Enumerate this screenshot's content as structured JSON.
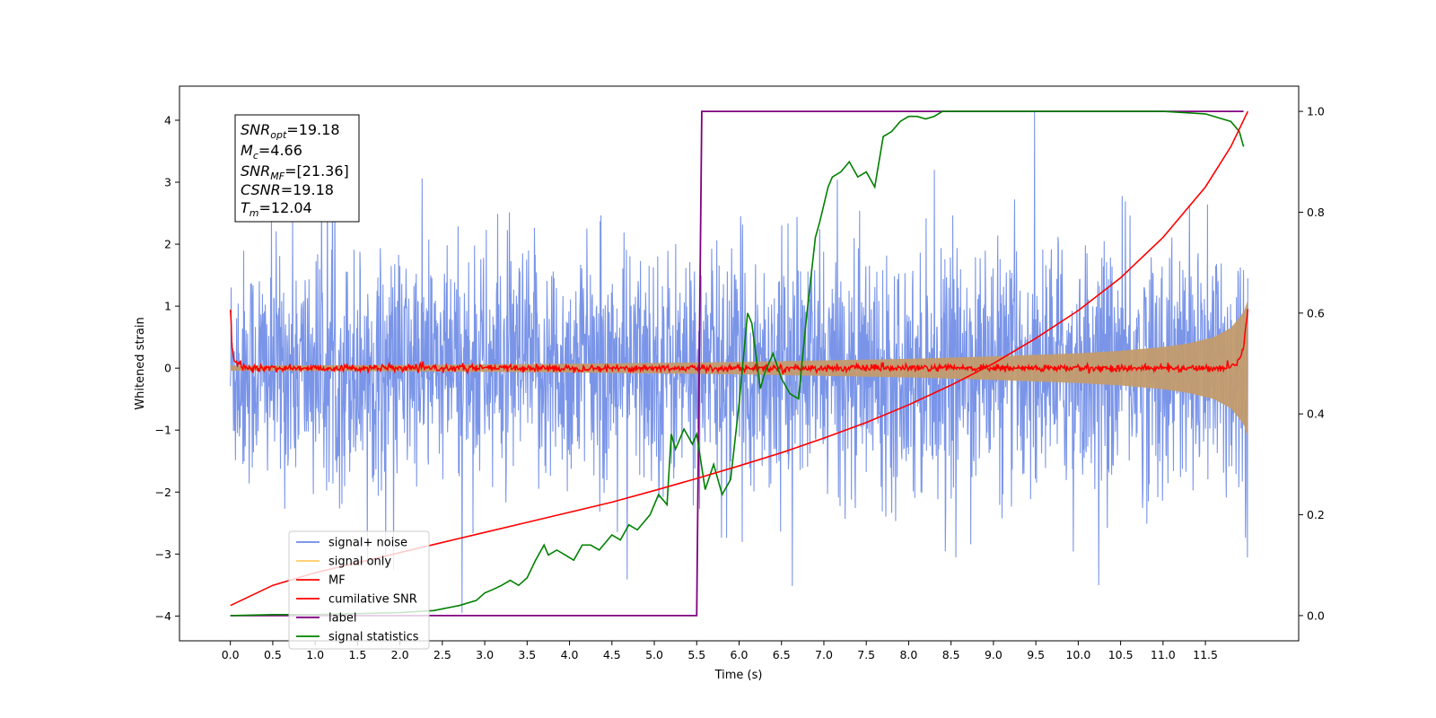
{
  "chart_data": {
    "type": "line",
    "xlabel": "Time (s)",
    "ylabel": "Whitened strain",
    "xlim": [
      -0.6,
      12.6
    ],
    "ylim": [
      -4.4,
      4.55
    ],
    "y2lim": [
      -0.05,
      1.05
    ],
    "xticks": [
      0.0,
      0.5,
      1.0,
      1.5,
      2.0,
      2.5,
      3.0,
      3.5,
      4.0,
      4.5,
      5.0,
      5.5,
      6.0,
      6.5,
      7.0,
      7.5,
      8.0,
      8.5,
      9.0,
      9.5,
      10.0,
      10.5,
      11.0,
      11.5
    ],
    "xtick_labels": [
      "0.0",
      "0.5",
      "1.0",
      "1.5",
      "2.0",
      "2.5",
      "3.0",
      "3.5",
      "4.0",
      "4.5",
      "5.0",
      "5.5",
      "6.0",
      "6.5",
      "7.0",
      "7.5",
      "8.0",
      "8.5",
      "9.0",
      "9.5",
      "10.0",
      "10.5",
      "11.0",
      "11.5"
    ],
    "yticks": [
      -4,
      -3,
      -2,
      -1,
      0,
      1,
      2,
      3,
      4
    ],
    "ytick_labels": [
      "−4",
      "−3",
      "−2",
      "−1",
      "0",
      "1",
      "2",
      "3",
      "4"
    ],
    "y2ticks": [
      0.0,
      0.2,
      0.4,
      0.6,
      0.8,
      1.0
    ],
    "y2tick_labels": [
      "0.0",
      "0.2",
      "0.4",
      "0.6",
      "0.8",
      "1.0"
    ],
    "legend_position": "lower-left",
    "series": [
      {
        "name": "signal+ noise",
        "color": "#6b8ae6",
        "axis": "left",
        "description_envelope": {
          "x": [
            0.0,
            2.0,
            4.0,
            6.0,
            8.0,
            10.0,
            11.0,
            11.5,
            11.8,
            12.0
          ],
          "upper": [
            1.7,
            1.7,
            1.7,
            1.7,
            1.7,
            1.75,
            1.8,
            1.9,
            2.0,
            2.1
          ],
          "lower": [
            -1.7,
            -1.7,
            -1.7,
            -1.7,
            -1.7,
            -1.75,
            -1.8,
            -1.9,
            -2.0,
            -2.1
          ]
        }
      },
      {
        "name": "signal only",
        "color": "#ffcc66",
        "axis": "left",
        "envelope": {
          "x": [
            0.0,
            2.0,
            4.0,
            6.0,
            8.0,
            9.0,
            10.0,
            10.5,
            11.0,
            11.3,
            11.6,
            11.8,
            11.95,
            12.0
          ],
          "amplitude": [
            0.04,
            0.05,
            0.07,
            0.1,
            0.15,
            0.19,
            0.24,
            0.28,
            0.34,
            0.4,
            0.5,
            0.65,
            0.9,
            1.1
          ]
        }
      },
      {
        "name": "MF",
        "color": "#ff0000",
        "axis": "left",
        "x": [
          0.0,
          0.02,
          0.05,
          0.1,
          0.2,
          11.7,
          11.85,
          11.95,
          12.0
        ],
        "y": [
          1.0,
          0.3,
          0.1,
          0.05,
          0.0,
          0.0,
          0.05,
          0.3,
          1.0
        ]
      },
      {
        "name": "cumilative SNR",
        "color": "#ff0000",
        "axis": "right",
        "x": [
          0.0,
          0.5,
          1.0,
          1.5,
          2.0,
          2.5,
          3.0,
          3.5,
          4.0,
          4.5,
          5.0,
          5.5,
          6.0,
          6.5,
          7.0,
          7.5,
          8.0,
          8.5,
          9.0,
          9.5,
          10.0,
          10.5,
          11.0,
          11.5,
          11.8,
          12.0
        ],
        "y": [
          0.02,
          0.06,
          0.085,
          0.105,
          0.125,
          0.145,
          0.165,
          0.185,
          0.205,
          0.225,
          0.248,
          0.272,
          0.297,
          0.323,
          0.352,
          0.383,
          0.418,
          0.457,
          0.5,
          0.55,
          0.605,
          0.67,
          0.75,
          0.85,
          0.93,
          1.0
        ]
      },
      {
        "name": "label",
        "color": "#800080",
        "axis": "right",
        "x": [
          0.0,
          5.5,
          5.56,
          11.95
        ],
        "y": [
          0.0,
          0.0,
          1.0,
          1.0
        ]
      },
      {
        "name": "signal statistics",
        "color": "#008000",
        "axis": "right",
        "x": [
          0.0,
          0.5,
          1.0,
          1.5,
          2.0,
          2.4,
          2.7,
          2.9,
          3.0,
          3.1,
          3.2,
          3.3,
          3.4,
          3.5,
          3.6,
          3.7,
          3.75,
          3.85,
          3.95,
          4.05,
          4.15,
          4.25,
          4.35,
          4.5,
          4.6,
          4.7,
          4.8,
          4.85,
          4.95,
          5.05,
          5.15,
          5.2,
          5.25,
          5.35,
          5.45,
          5.5,
          5.6,
          5.7,
          5.8,
          5.9,
          6.0,
          6.1,
          6.15,
          6.25,
          6.3,
          6.4,
          6.5,
          6.6,
          6.7,
          6.8,
          6.9,
          6.95,
          7.05,
          7.1,
          7.2,
          7.3,
          7.4,
          7.5,
          7.6,
          7.7,
          7.8,
          7.9,
          8.0,
          8.1,
          8.2,
          8.3,
          8.4,
          8.5,
          9.0,
          9.5,
          10.0,
          10.5,
          11.0,
          11.5,
          11.8,
          11.9,
          11.95
        ],
        "y": [
          0.0,
          0.002,
          0.002,
          0.004,
          0.006,
          0.01,
          0.02,
          0.03,
          0.045,
          0.052,
          0.06,
          0.07,
          0.06,
          0.075,
          0.11,
          0.14,
          0.12,
          0.13,
          0.12,
          0.11,
          0.14,
          0.14,
          0.13,
          0.16,
          0.15,
          0.18,
          0.17,
          0.18,
          0.2,
          0.24,
          0.22,
          0.36,
          0.33,
          0.37,
          0.34,
          0.36,
          0.25,
          0.3,
          0.24,
          0.27,
          0.42,
          0.6,
          0.58,
          0.45,
          0.48,
          0.52,
          0.47,
          0.44,
          0.43,
          0.6,
          0.75,
          0.78,
          0.85,
          0.87,
          0.88,
          0.9,
          0.87,
          0.88,
          0.85,
          0.95,
          0.96,
          0.98,
          0.99,
          0.99,
          0.985,
          0.99,
          1.0,
          1.0,
          1.0,
          1.0,
          1.0,
          1.0,
          1.0,
          0.995,
          0.98,
          0.96,
          0.93
        ]
      }
    ],
    "annotation": {
      "lines": [
        {
          "label": "SNR",
          "sub": "opt",
          "value": "=19.18"
        },
        {
          "label": "M",
          "sub": "c",
          "value": "=4.66"
        },
        {
          "label": "SNR",
          "sub": "MF",
          "value": "=[21.36]"
        },
        {
          "label": "CSNR",
          "sub": "",
          "value": "=19.18"
        },
        {
          "label": "T",
          "sub": "m",
          "value": "=12.04"
        }
      ]
    }
  }
}
